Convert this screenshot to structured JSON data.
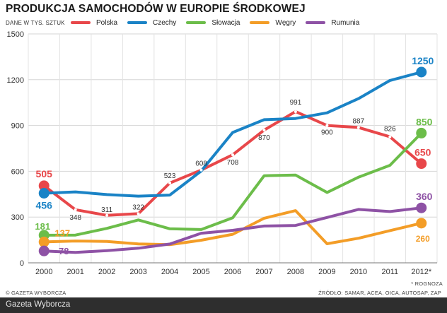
{
  "header": {
    "title": "PRODUKCJA SAMOCHODÓW W EUROPIE ŚRODKOWEJ",
    "unit_note": "DANE W TYS. SZTUK"
  },
  "footer": {
    "copyright": "© GAZETA WYBORCZA",
    "source": "ŹRÓDŁO: SAMAR, ACEA, OICA, AUTOSAP, ZAP",
    "forecast_note": "* ROGNOZA",
    "brand": "Gazeta Wyborcza"
  },
  "chart_data": {
    "type": "line",
    "title": "PRODUKCJA SAMOCHODÓW W EUROPIE ŚRODKOWEJ",
    "ylabel": "DANE W TYS. SZTUK",
    "xlabel": "",
    "x": [
      "2000",
      "2001",
      "2002",
      "2003",
      "2004",
      "2005",
      "2006",
      "2007",
      "2008",
      "2009",
      "2010",
      "2011",
      "2012*"
    ],
    "yticks": [
      "0",
      "300",
      "600",
      "900",
      "1200",
      "1500"
    ],
    "ylim": [
      0,
      1500
    ],
    "grid": true,
    "legend_position": "top",
    "series": [
      {
        "name": "Polska",
        "color": "#e8474a",
        "values": [
          505,
          348,
          311,
          322,
          523,
          608,
          708,
          870,
          991,
          900,
          887,
          826,
          650
        ],
        "point_labels": [
          "",
          "348",
          "311",
          "322",
          "523",
          "608",
          "708",
          "870",
          "991",
          "900",
          "887",
          "826",
          ""
        ],
        "start_label": "505",
        "end_label": "650"
      },
      {
        "name": "Czechy",
        "color": "#1a83c6",
        "values": [
          456,
          465,
          447,
          437,
          444,
          602,
          854,
          938,
          946,
          983,
          1076,
          1195,
          1250
        ],
        "start_label": "456",
        "end_label": "1250"
      },
      {
        "name": "Słowacja",
        "color": "#6cbd4a",
        "values": [
          181,
          182,
          226,
          281,
          223,
          218,
          295,
          571,
          575,
          461,
          561,
          639,
          850
        ],
        "start_label": "181",
        "end_label": "850"
      },
      {
        "name": "Węgry",
        "color": "#f39d27",
        "values": [
          137,
          143,
          140,
          124,
          119,
          148,
          187,
          292,
          342,
          125,
          161,
          211,
          260
        ],
        "start_label": "137",
        "end_label": "260"
      },
      {
        "name": "Rumunia",
        "color": "#8e52a5",
        "values": [
          78,
          68,
          80,
          96,
          123,
          194,
          213,
          241,
          245,
          297,
          350,
          336,
          360
        ],
        "start_label": "78",
        "end_label": "360"
      }
    ]
  }
}
